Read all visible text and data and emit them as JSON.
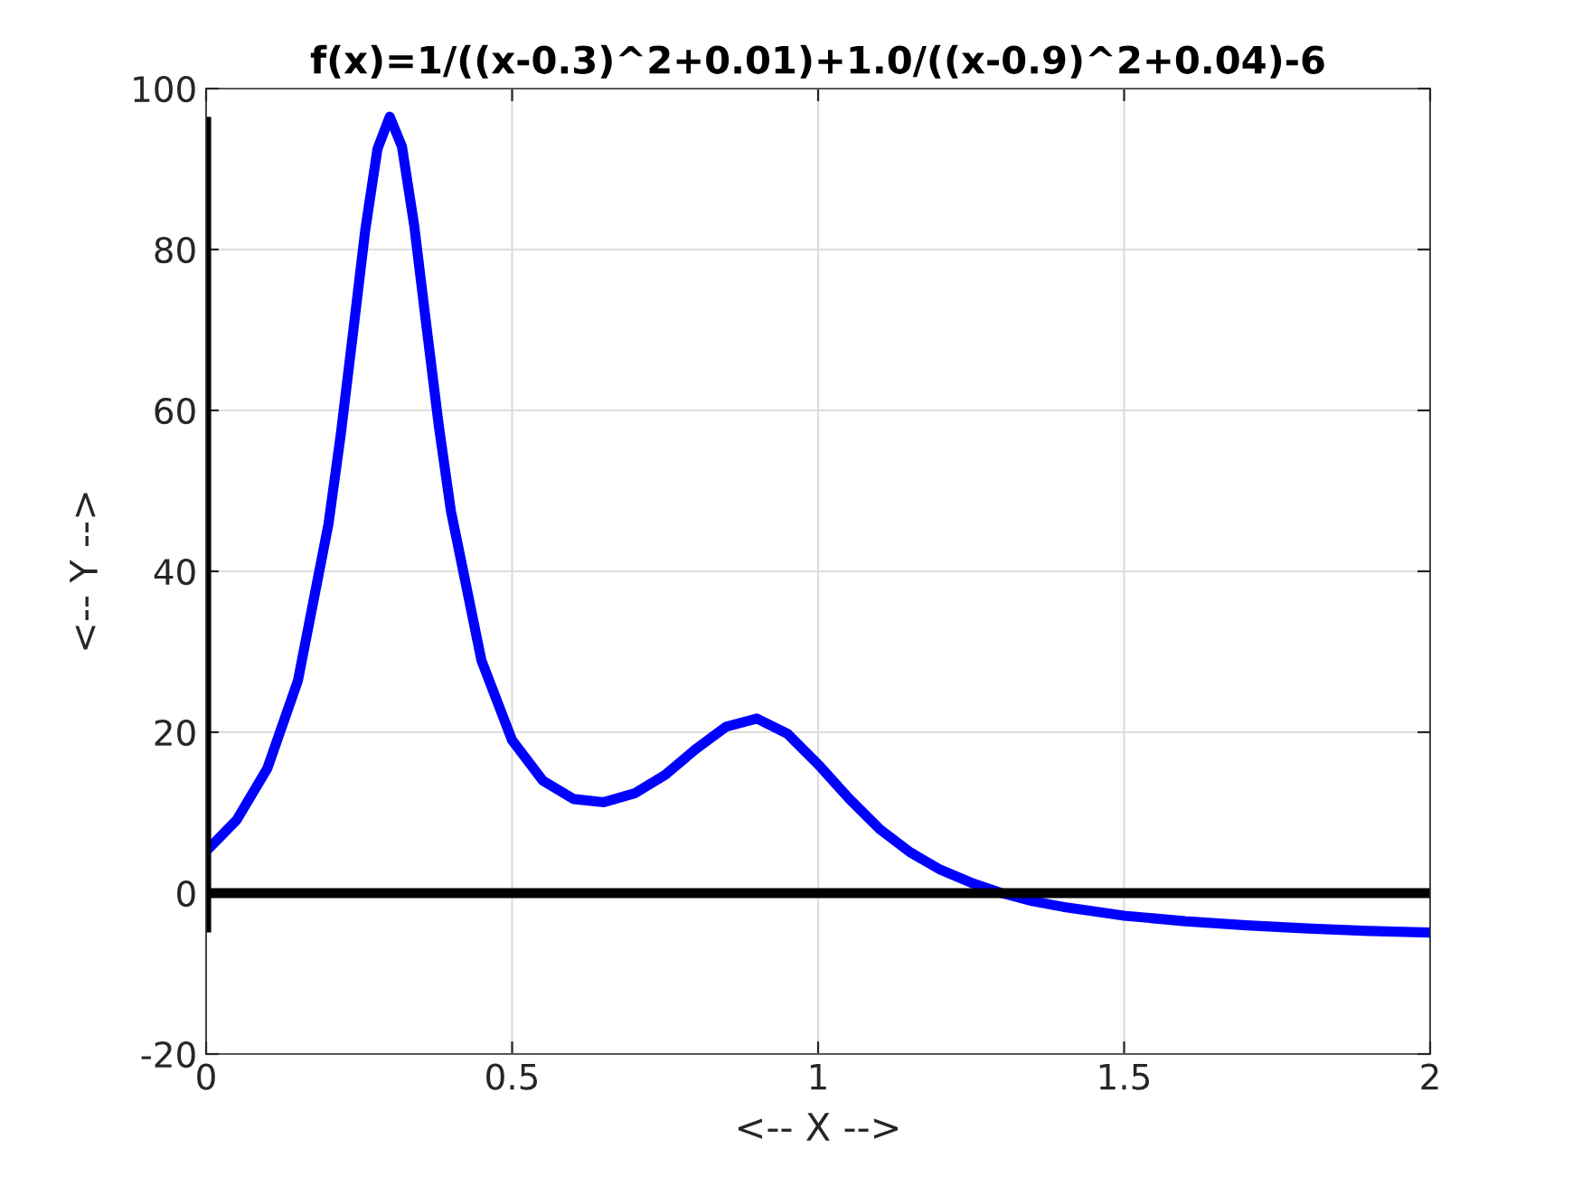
{
  "chart_data": {
    "type": "line",
    "title": "f(x)=1/((x-0.3)^2+0.01)+1.0/((x-0.9)^2+0.04)-6",
    "xlabel": "<-- X -->",
    "ylabel": "<-- Y -->",
    "series": [
      {
        "color": "#0000ff",
        "x": [
          0,
          0.05,
          0.1,
          0.15,
          0.2,
          0.22,
          0.24,
          0.26,
          0.28,
          0.3,
          0.32,
          0.34,
          0.36,
          0.38,
          0.4,
          0.45,
          0.5,
          0.55,
          0.6,
          0.65,
          0.7,
          0.75,
          0.8,
          0.85,
          0.9,
          0.95,
          1.0,
          1.05,
          1.1,
          1.15,
          1.2,
          1.25,
          1.3,
          1.35,
          1.4,
          1.5,
          1.6,
          1.7,
          1.8,
          1.9,
          2.0
        ],
        "values": [
          5.2,
          9.1,
          15.5,
          26.4,
          45.9,
          57.0,
          69.6,
          82.4,
          92.5,
          96.5,
          92.8,
          83.0,
          70.5,
          58.2,
          47.5,
          28.9,
          19.0,
          14.0,
          11.7,
          11.3,
          12.4,
          14.7,
          17.9,
          20.7,
          21.7,
          19.8,
          16.0,
          11.8,
          8.0,
          5.1,
          2.9,
          1.3,
          0.0,
          -1.0,
          -1.7,
          -2.8,
          -3.5,
          -4.0,
          -4.4,
          -4.7,
          -4.9
        ]
      },
      {
        "color": "#000000",
        "x": [
          0,
          2
        ],
        "values": [
          0,
          0
        ]
      },
      {
        "color": "#000000",
        "x": [
          0,
          0
        ],
        "values": [
          -4.9,
          96.5
        ]
      }
    ],
    "xlim": [
      0,
      2
    ],
    "xticks": [
      0,
      0.5,
      1,
      1.5,
      2
    ],
    "ylim": [
      -20,
      100
    ],
    "yticks": [
      -20,
      0,
      20,
      40,
      60,
      80,
      100
    ],
    "grid": true,
    "legend": false,
    "marker": "none",
    "line_style": "solid"
  }
}
